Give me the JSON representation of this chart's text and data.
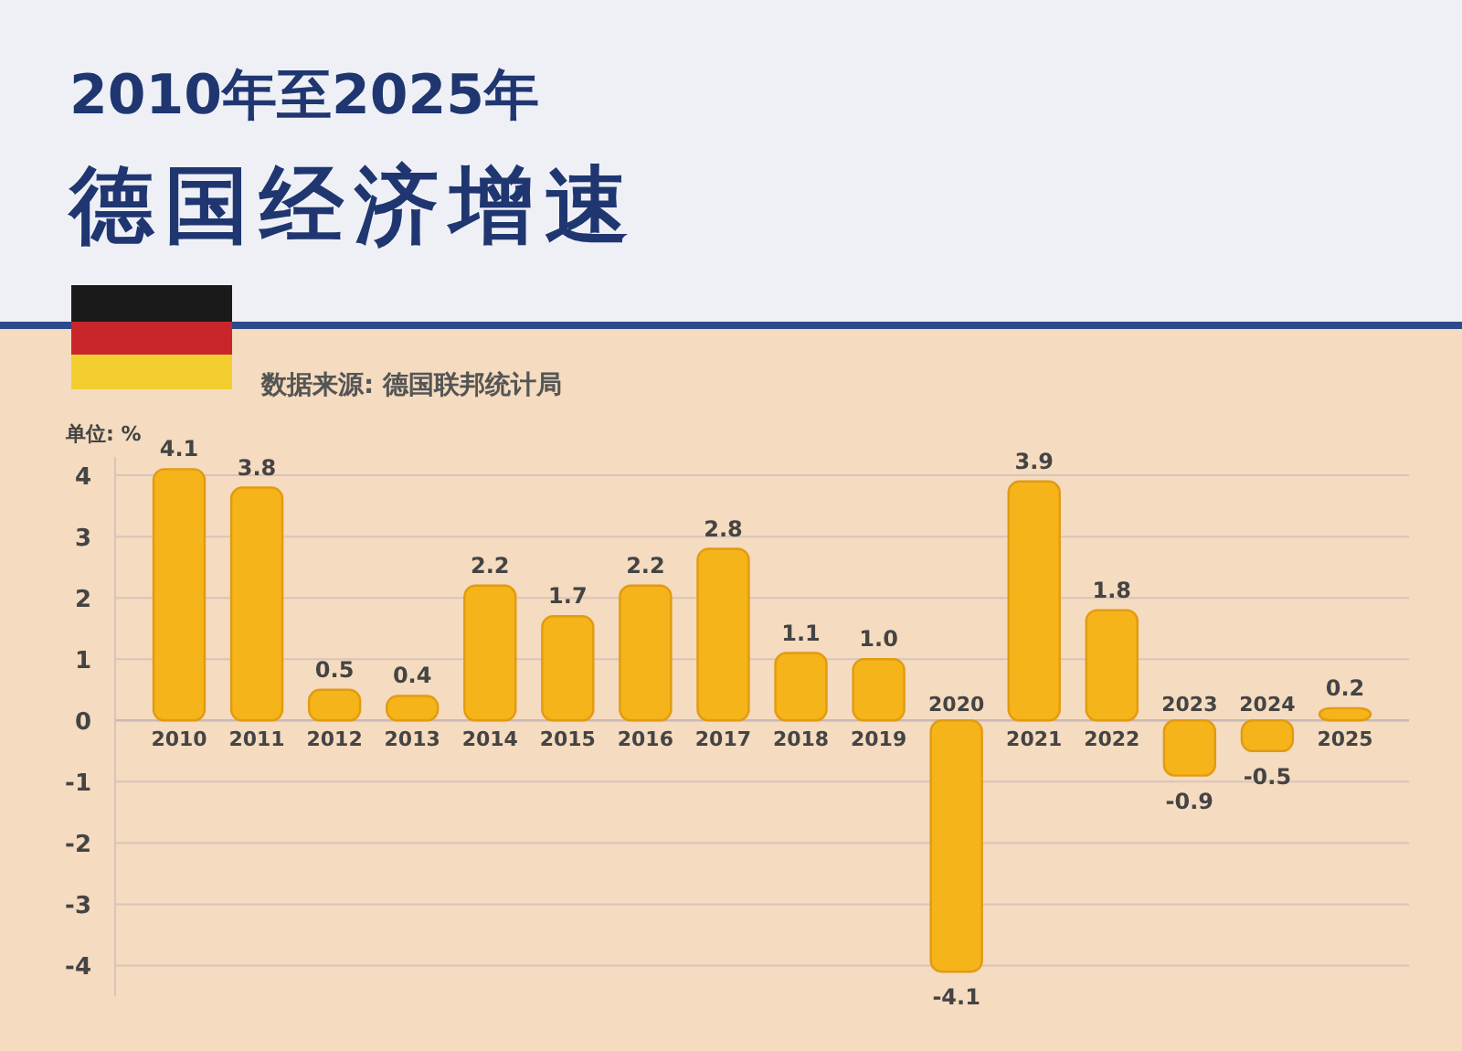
{
  "chart_data": {
    "type": "bar",
    "title": "2010年至2025年",
    "subtitle": "德国经济增速",
    "ylabel": "单位: %",
    "annotations": [
      "数据来源: 德国联邦统计局"
    ],
    "categories": [
      "2010",
      "2011",
      "2012",
      "2013",
      "2014",
      "2015",
      "2016",
      "2017",
      "2018",
      "2019",
      "2020",
      "2021",
      "2022",
      "2023",
      "2024",
      "2025"
    ],
    "values": [
      4.1,
      3.8,
      0.5,
      0.4,
      2.2,
      1.7,
      2.2,
      2.8,
      1.1,
      1.0,
      -4.1,
      3.9,
      1.8,
      -0.9,
      -0.5,
      0.2
    ],
    "value_labels": [
      "4.1",
      "3.8",
      "0.5",
      "0.4",
      "2.2",
      "1.7",
      "2.2",
      "2.8",
      "1.1",
      "1.0",
      "-4.1",
      "3.9",
      "1.8",
      "-0.9",
      "-0.5",
      "0.2"
    ],
    "color": "#f4b41a",
    "ylim": [
      -4.5,
      4.3
    ],
    "yticks": [
      -4,
      -3,
      -2,
      -1,
      0,
      1,
      2,
      3,
      4
    ],
    "grid": "y"
  }
}
